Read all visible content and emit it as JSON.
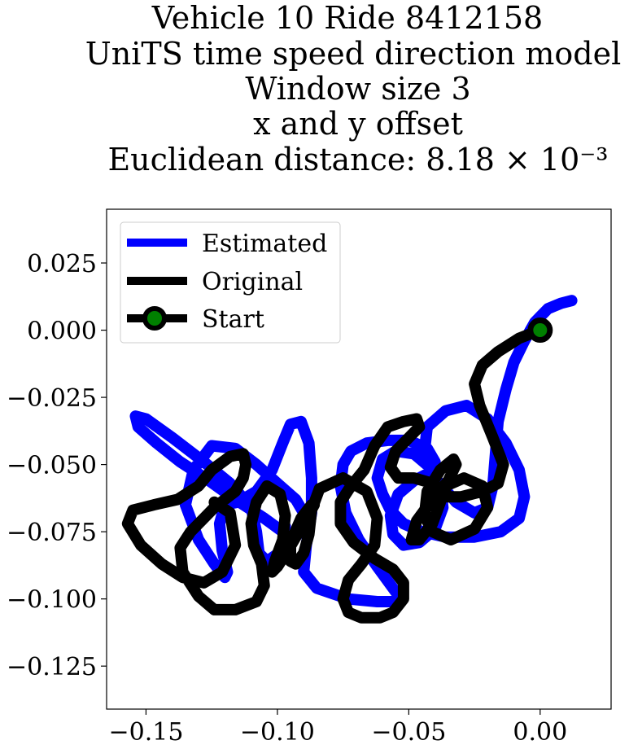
{
  "chart_data": {
    "type": "line",
    "title_lines": [
      "Vehicle 10 Ride 8412158",
      "UniTS time speed direction model",
      "Window size 3",
      "x and y offset",
      "Euclidean distance: 8.18 × 10⁻³"
    ],
    "xlabel": "",
    "ylabel": "",
    "xlim": [
      -0.165,
      0.027
    ],
    "ylim": [
      -0.141,
      0.045
    ],
    "x_ticks": [
      -0.15,
      -0.1,
      -0.05,
      0.0
    ],
    "x_tick_labels": [
      "−0.15",
      "−0.10",
      "−0.05",
      "0.00"
    ],
    "y_ticks": [
      0.025,
      0.0,
      -0.025,
      -0.05,
      -0.075,
      -0.1,
      -0.125
    ],
    "y_tick_labels": [
      "0.025",
      "0.000",
      "−0.025",
      "−0.050",
      "−0.075",
      "−0.100",
      "−0.125"
    ],
    "grid": false,
    "legend_position": "upper-left",
    "series": [
      {
        "name": "Estimated",
        "color": "#0000ff",
        "x": [
          0.012,
          0.008,
          0.003,
          -0.002,
          -0.006,
          -0.01,
          -0.013,
          -0.016,
          -0.017,
          -0.018,
          -0.02,
          -0.025,
          -0.032,
          -0.04,
          -0.044,
          -0.043,
          -0.036,
          -0.028,
          -0.02,
          -0.013,
          -0.008,
          -0.006,
          -0.008,
          -0.015,
          -0.025,
          -0.036,
          -0.045,
          -0.052,
          -0.057,
          -0.06,
          -0.062,
          -0.06,
          -0.055,
          -0.048,
          -0.042,
          -0.038,
          -0.037,
          -0.04,
          -0.046,
          -0.052,
          -0.056,
          -0.057,
          -0.054,
          -0.048,
          -0.042,
          -0.04,
          -0.043,
          -0.05,
          -0.058,
          -0.066,
          -0.072,
          -0.075,
          -0.076,
          -0.074,
          -0.069,
          -0.062,
          -0.056,
          -0.053,
          -0.055,
          -0.062,
          -0.073,
          -0.085,
          -0.09,
          -0.089,
          -0.087,
          -0.087,
          -0.088,
          -0.091,
          -0.095,
          -0.098,
          -0.102,
          -0.108,
          -0.115,
          -0.12,
          -0.122,
          -0.121,
          -0.119,
          -0.12,
          -0.124,
          -0.13,
          -0.135,
          -0.132,
          -0.125,
          -0.116,
          -0.108,
          -0.1,
          -0.093,
          -0.09,
          -0.092,
          -0.098,
          -0.104,
          -0.107,
          -0.108,
          -0.11,
          -0.118,
          -0.128,
          -0.14,
          -0.15,
          -0.154,
          -0.153,
          -0.146,
          -0.137,
          -0.126,
          -0.116,
          -0.105,
          -0.098,
          -0.097
        ],
        "y": [
          0.011,
          0.01,
          0.008,
          0.003,
          -0.004,
          -0.012,
          -0.022,
          -0.034,
          -0.046,
          -0.058,
          -0.066,
          -0.068,
          -0.064,
          -0.055,
          -0.045,
          -0.036,
          -0.03,
          -0.028,
          -0.033,
          -0.042,
          -0.052,
          -0.062,
          -0.07,
          -0.075,
          -0.077,
          -0.077,
          -0.075,
          -0.072,
          -0.067,
          -0.061,
          -0.055,
          -0.048,
          -0.045,
          -0.046,
          -0.051,
          -0.058,
          -0.066,
          -0.074,
          -0.079,
          -0.08,
          -0.076,
          -0.069,
          -0.061,
          -0.056,
          -0.053,
          -0.049,
          -0.044,
          -0.041,
          -0.041,
          -0.042,
          -0.045,
          -0.05,
          -0.058,
          -0.068,
          -0.078,
          -0.088,
          -0.096,
          -0.1,
          -0.101,
          -0.101,
          -0.1,
          -0.096,
          -0.09,
          -0.08,
          -0.068,
          -0.055,
          -0.042,
          -0.034,
          -0.035,
          -0.042,
          -0.052,
          -0.06,
          -0.064,
          -0.065,
          -0.072,
          -0.082,
          -0.09,
          -0.092,
          -0.087,
          -0.078,
          -0.065,
          -0.052,
          -0.043,
          -0.044,
          -0.05,
          -0.057,
          -0.063,
          -0.068,
          -0.075,
          -0.082,
          -0.086,
          -0.083,
          -0.075,
          -0.066,
          -0.057,
          -0.049,
          -0.04,
          -0.033,
          -0.032,
          -0.036,
          -0.042,
          -0.049,
          -0.056,
          -0.063,
          -0.07,
          -0.075,
          -0.073
        ]
      },
      {
        "name": "Original",
        "color": "#000000",
        "x": [
          0.0,
          -0.008,
          -0.016,
          -0.022,
          -0.025,
          -0.023,
          -0.018,
          -0.014,
          -0.016,
          -0.022,
          -0.03,
          -0.036,
          -0.036,
          -0.029,
          -0.022,
          -0.02,
          -0.025,
          -0.034,
          -0.041,
          -0.044,
          -0.043,
          -0.038,
          -0.033,
          -0.032,
          -0.035,
          -0.041,
          -0.047,
          -0.049,
          -0.046,
          -0.041,
          -0.038,
          -0.041,
          -0.048,
          -0.054,
          -0.057,
          -0.055,
          -0.05,
          -0.046,
          -0.047,
          -0.052,
          -0.058,
          -0.063,
          -0.067,
          -0.072,
          -0.076,
          -0.076,
          -0.071,
          -0.063,
          -0.056,
          -0.052,
          -0.052,
          -0.056,
          -0.061,
          -0.068,
          -0.073,
          -0.075,
          -0.073,
          -0.068,
          -0.063,
          -0.062,
          -0.066,
          -0.075,
          -0.084,
          -0.087,
          -0.088,
          -0.09,
          -0.093,
          -0.095,
          -0.095,
          -0.091,
          -0.087,
          -0.086,
          -0.09,
          -0.096,
          -0.1,
          -0.102,
          -0.101,
          -0.098,
          -0.097,
          -0.099,
          -0.104,
          -0.108,
          -0.11,
          -0.109,
          -0.106,
          -0.105,
          -0.108,
          -0.116,
          -0.124,
          -0.13,
          -0.136,
          -0.137,
          -0.133,
          -0.128,
          -0.124,
          -0.12,
          -0.116,
          -0.113,
          -0.112,
          -0.113,
          -0.118,
          -0.125,
          -0.13,
          -0.138,
          -0.147,
          -0.155,
          -0.157,
          -0.152,
          -0.144,
          -0.136,
          -0.128,
          -0.121,
          -0.116,
          -0.118,
          -0.124
        ],
        "y": [
          0.0,
          -0.003,
          -0.008,
          -0.013,
          -0.02,
          -0.028,
          -0.04,
          -0.05,
          -0.057,
          -0.06,
          -0.062,
          -0.062,
          -0.058,
          -0.055,
          -0.058,
          -0.066,
          -0.074,
          -0.078,
          -0.075,
          -0.069,
          -0.06,
          -0.052,
          -0.048,
          -0.05,
          -0.056,
          -0.063,
          -0.071,
          -0.078,
          -0.078,
          -0.072,
          -0.064,
          -0.057,
          -0.055,
          -0.055,
          -0.051,
          -0.045,
          -0.04,
          -0.036,
          -0.033,
          -0.034,
          -0.036,
          -0.043,
          -0.052,
          -0.058,
          -0.064,
          -0.072,
          -0.079,
          -0.085,
          -0.089,
          -0.094,
          -0.1,
          -0.105,
          -0.107,
          -0.107,
          -0.105,
          -0.1,
          -0.093,
          -0.087,
          -0.08,
          -0.07,
          -0.06,
          -0.055,
          -0.059,
          -0.067,
          -0.076,
          -0.083,
          -0.087,
          -0.086,
          -0.079,
          -0.07,
          -0.065,
          -0.065,
          -0.072,
          -0.082,
          -0.088,
          -0.09,
          -0.086,
          -0.078,
          -0.069,
          -0.061,
          -0.058,
          -0.064,
          -0.072,
          -0.08,
          -0.087,
          -0.095,
          -0.101,
          -0.104,
          -0.104,
          -0.099,
          -0.09,
          -0.081,
          -0.075,
          -0.07,
          -0.066,
          -0.063,
          -0.06,
          -0.055,
          -0.05,
          -0.046,
          -0.047,
          -0.052,
          -0.058,
          -0.063,
          -0.065,
          -0.067,
          -0.072,
          -0.08,
          -0.087,
          -0.092,
          -0.094,
          -0.09,
          -0.08,
          -0.068,
          -0.064
        ]
      },
      {
        "name": "Start",
        "marker_edge_color": "#000000",
        "marker_face_color": "#008000",
        "x": [
          0.0
        ],
        "y": [
          0.0
        ]
      }
    ]
  }
}
